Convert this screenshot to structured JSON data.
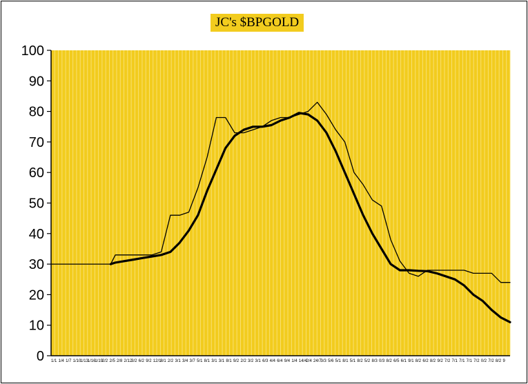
{
  "chart_data": {
    "type": "line",
    "title": "JC's $BPGOLD",
    "xlabel": "",
    "ylabel": "",
    "ylim": [
      0,
      100
    ],
    "yticks": [
      0,
      10,
      20,
      30,
      40,
      50,
      60,
      70,
      80,
      90,
      100
    ],
    "grid": true,
    "legend": "none",
    "colors": {
      "plot_bg": "#f2cc1e",
      "grid": "#fae27a",
      "title_bg": "#f2cc1e",
      "line": "#000000"
    },
    "x": [
      0,
      5,
      10,
      13,
      14,
      18,
      20,
      22,
      24,
      26,
      28,
      30,
      32,
      34,
      36,
      38,
      40,
      42,
      44,
      46,
      48,
      50,
      52,
      54,
      56,
      58,
      60,
      62,
      64,
      66,
      68,
      70,
      72,
      74,
      76,
      78,
      80,
      82,
      84,
      86,
      88,
      90,
      92,
      94,
      96,
      98,
      100
    ],
    "series": [
      {
        "values": [
          30,
          30,
          30,
          30,
          33,
          33,
          33,
          33,
          34,
          46,
          46,
          47,
          55,
          65,
          78,
          78,
          73,
          73,
          74,
          75,
          77,
          78,
          78,
          79,
          80,
          83,
          79,
          74,
          70,
          60,
          56,
          51,
          49,
          38,
          31,
          27,
          26,
          28,
          28,
          28,
          28,
          28,
          27,
          27,
          27,
          24,
          24
        ]
      },
      {
        "values": [
          null,
          null,
          null,
          30,
          30.5,
          31.5,
          32,
          32.5,
          33,
          34,
          37,
          41,
          46,
          54,
          61,
          68,
          72,
          74,
          75,
          75,
          75.5,
          77,
          78,
          79.5,
          79,
          77,
          73,
          67,
          60,
          53,
          46,
          40,
          35,
          30,
          28,
          28,
          27.8,
          27.7,
          27,
          26,
          25,
          23,
          20,
          18,
          15,
          12.5,
          11
        ]
      }
    ],
    "x_tick_labels": [
      "1/1",
      "1/4",
      "1/7",
      "1/10",
      "1/13",
      "1/16",
      "1/19",
      "2/2",
      "2/5",
      "2/8",
      "2/12",
      "3/2",
      "6/2",
      "9/2",
      "12/1",
      "8/1",
      "2/2",
      "3/1",
      "3/4",
      "3/7",
      "5/1",
      "8/1",
      "3/1",
      "3/1",
      "8/1",
      "9/2",
      "2/2",
      "3/2",
      "3/1",
      "6/3",
      "4/4",
      "6/4",
      "9/4",
      "1/4",
      "14/4",
      "2/4",
      "24/7",
      "3/3",
      "5/6",
      "5/1",
      "8/1",
      "5/1",
      "8/2",
      "5/2",
      "8/3",
      "0/3",
      "8/2",
      "6/5",
      "6/1",
      "9/1",
      "8/2",
      "6/2",
      "8/2",
      "9/2",
      "7/2",
      "7/1",
      "7/1",
      "7/1",
      "7/2",
      "0/2",
      "7/2",
      "8/2",
      "9"
    ]
  }
}
